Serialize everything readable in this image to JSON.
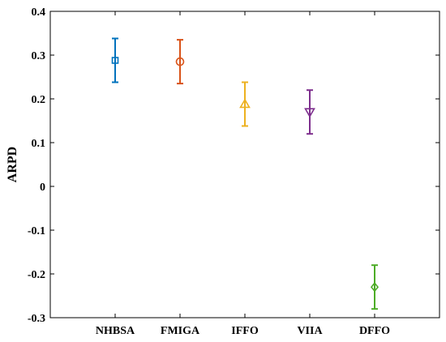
{
  "chart_data": {
    "type": "errorbar",
    "ylabel": "ARPD",
    "xlabel": "",
    "title": "",
    "ylim": [
      -0.3,
      0.4
    ],
    "yticks": [
      -0.3,
      -0.2,
      -0.1,
      0.0,
      0.1,
      0.2,
      0.3,
      0.4
    ],
    "ytick_labels": [
      "-0.3",
      "-0.2",
      "-0.1",
      "0",
      "0.1",
      "0.2",
      "0.3",
      "0.4"
    ],
    "grid": false,
    "categories": [
      "NHBSA",
      "FMIGA",
      "IFFO",
      "VIIA",
      "DFFO"
    ],
    "series": [
      {
        "category": "NHBSA",
        "mean": 0.288,
        "lower": 0.238,
        "upper": 0.338,
        "marker": "square",
        "color": "#0072BD"
      },
      {
        "category": "FMIGA",
        "mean": 0.285,
        "lower": 0.235,
        "upper": 0.335,
        "marker": "circle",
        "color": "#D95319"
      },
      {
        "category": "IFFO",
        "mean": 0.188,
        "lower": 0.138,
        "upper": 0.238,
        "marker": "triangle-up",
        "color": "#EDB120"
      },
      {
        "category": "VIIA",
        "mean": 0.17,
        "lower": 0.12,
        "upper": 0.22,
        "marker": "triangle-down",
        "color": "#7E2F8E"
      },
      {
        "category": "DFFO",
        "mean": -0.23,
        "lower": -0.28,
        "upper": -0.18,
        "marker": "diamond",
        "color": "#4DAC26"
      }
    ]
  }
}
